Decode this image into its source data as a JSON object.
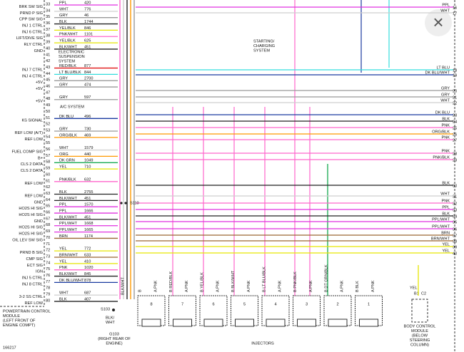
{
  "left_rows": [
    {
      "pin": "33",
      "signal": "BRK SW SIG",
      "wire": "PPL",
      "circuit": "420"
    },
    {
      "pin": "34",
      "signal": "PRND P SIG",
      "wire": "WHT",
      "circuit": "776"
    },
    {
      "pin": "35",
      "signal": "CPP SW SIG",
      "wire": "GRY",
      "circuit": "46"
    },
    {
      "pin": "36",
      "signal": "INJ 1 CTRL",
      "wire": "BLK",
      "circuit": "1744"
    },
    {
      "pin": "37",
      "signal": "INJ 6 CTRL",
      "wire": "YEL/BLK",
      "circuit": "846"
    },
    {
      "pin": "38",
      "signal": "LIFT/DIVE SIG",
      "wire": "PNK/WHT",
      "circuit": "1101"
    },
    {
      "pin": "39",
      "signal": "RLY CTRL",
      "wire": "YEL/BLK",
      "circuit": "625"
    },
    {
      "pin": "40",
      "signal": "GND",
      "wire": "BLK/WHT",
      "circuit": "451"
    },
    {
      "pin": "41"
    },
    {
      "pin": "42"
    },
    {
      "pin": "43",
      "signal": "INJ 7 CTRL",
      "wire": "RED/BLK",
      "circuit": "877"
    },
    {
      "pin": "44",
      "signal": "INJ 4 CTRL",
      "wire": "LT BLU/BLK",
      "circuit": "844"
    },
    {
      "pin": "45",
      "signal": "+5V",
      "wire": "GRY",
      "circuit": "2700"
    },
    {
      "pin": "46",
      "signal": "+5V",
      "wire": "GRY",
      "circuit": "474"
    },
    {
      "pin": "47"
    },
    {
      "pin": "48",
      "signal": "+5V",
      "wire": "GRY",
      "circuit": "597"
    },
    {
      "pin": "49"
    },
    {
      "pin": "50"
    },
    {
      "pin": "51",
      "signal": "KS SIGNAL",
      "wire": "DK BLU",
      "circuit": "496"
    },
    {
      "pin": "52"
    },
    {
      "pin": "53",
      "signal": "REF LOW (A/T)",
      "wire": "GRY",
      "circuit": "730"
    },
    {
      "pin": "54",
      "signal": "REF LOW",
      "wire": "ORG/BLK",
      "circuit": "469"
    },
    {
      "pin": "55"
    },
    {
      "pin": "56",
      "signal": "FUEL COMP SIG",
      "wire": "WHT",
      "circuit": "1579"
    },
    {
      "pin": "57",
      "signal": "B+",
      "wire": "ORG",
      "circuit": "440"
    },
    {
      "pin": "58",
      "signal": "CLS 2 DATA",
      "wire": "DK GRN",
      "circuit": "1049"
    },
    {
      "pin": "59",
      "signal": "CLS 2 DATA",
      "wire": "YEL",
      "circuit": "710"
    },
    {
      "pin": "60"
    },
    {
      "pin": "61",
      "signal": "REF LOW",
      "wire": "PNK/BLK",
      "circuit": "632"
    },
    {
      "pin": "62"
    },
    {
      "pin": "63",
      "signal": "REF LOW",
      "wire": "BLK",
      "circuit": "2755"
    },
    {
      "pin": "64",
      "signal": "GND",
      "wire": "BLK/WHT",
      "circuit": "451"
    },
    {
      "pin": "65",
      "signal": "HO2S HI SIG",
      "wire": "PPL",
      "circuit": "1570"
    },
    {
      "pin": "66",
      "signal": "HO2S HI SIG",
      "wire": "PPL",
      "circuit": "1666"
    },
    {
      "pin": "67",
      "signal": "GND",
      "wire": "BLK/WHT",
      "circuit": "451"
    },
    {
      "pin": "68",
      "signal": "HO2S HI SIG",
      "wire": "PPL/WHT",
      "circuit": "1668"
    },
    {
      "pin": "69",
      "signal": "HO2S HI SIG",
      "wire": "PPL/WHT",
      "circuit": "1665"
    },
    {
      "pin": "70",
      "signal": "OIL LEV SW SIG",
      "wire": "BRN",
      "circuit": "1174"
    },
    {
      "pin": "71"
    },
    {
      "pin": "72",
      "signal": "PRND B SIG",
      "wire": "YEL",
      "circuit": "772"
    },
    {
      "pin": "73",
      "signal": "CMP SIG",
      "wire": "BRN/WHT",
      "circuit": "633"
    },
    {
      "pin": "74",
      "signal": "ECT SIG",
      "wire": "YEL",
      "circuit": "410"
    },
    {
      "pin": "75",
      "signal": "IGN",
      "wire": "PNK",
      "circuit": "1020"
    },
    {
      "pin": "76",
      "signal": "INJ 5 CTRL",
      "wire": "BLK/WHT",
      "circuit": "845"
    },
    {
      "pin": "77",
      "signal": "INJ 8 CTRL",
      "wire": "DK BLU/WHT",
      "circuit": "878"
    },
    {
      "pin": "78"
    },
    {
      "pin": "79",
      "signal": "3-2 SS CTRL",
      "wire": "WHT",
      "circuit": "687"
    },
    {
      "pin": "80",
      "signal": "REF LOW",
      "wire": "BLK",
      "circuit": "407"
    }
  ],
  "right_rows": [
    {
      "wire": "PPL",
      "pin": "16"
    },
    {
      "wire": "WHT",
      "pin": "17"
    },
    {
      "wire": "LT BLU",
      "pin": "18"
    },
    {
      "wire": "DK BLU/WHT",
      "pin": "19"
    },
    {
      "wire": "GRY",
      "pin": "20"
    },
    {
      "wire": "GRY",
      "pin": "21"
    },
    {
      "wire": "WHT",
      "pin": "22"
    },
    {
      "wire": "DK BLU",
      "pin": "23"
    },
    {
      "wire": "BLK",
      "pin": "24"
    },
    {
      "wire": "PNK",
      "pin": "25"
    },
    {
      "wire": "ORG/BLK",
      "pin": "26"
    },
    {
      "wire": "PNK",
      "pin": "27"
    },
    {
      "wire": "PNK",
      "pin": "28"
    },
    {
      "wire": "PNK/BLK",
      "pin": "29"
    },
    {
      "wire": "BLK",
      "pin": "30"
    },
    {
      "wire": "WHT",
      "pin": "31"
    },
    {
      "wire": "PNK",
      "pin": "32"
    },
    {
      "wire": "PPL",
      "pin": "33"
    },
    {
      "wire": "BLK",
      "pin": "34"
    },
    {
      "wire": "PPL/WHT",
      "pin": "35"
    },
    {
      "wire": "PPL/WHT",
      "pin": "36"
    },
    {
      "wire": "BRN",
      "pin": "37"
    },
    {
      "wire": "BRN/WHT",
      "pin": "38"
    },
    {
      "wire": "YEL",
      "pin": "39"
    },
    {
      "wire": "YEL",
      "pin": "40"
    }
  ],
  "injectors": [
    {
      "number": "8",
      "b": "B",
      "a": "A PNK"
    },
    {
      "number": "7",
      "b": "B RED/BLK",
      "a": "A PNK"
    },
    {
      "number": "6",
      "b": "B YEL/BLK",
      "a": "A PNK"
    },
    {
      "number": "5",
      "b": "B BLK/WHT",
      "a": "A PNK"
    },
    {
      "number": "4",
      "b": "B LT BLU/BLK",
      "a": "A PNK"
    },
    {
      "number": "3",
      "b": "B PNK/BLK",
      "a": "A PNK"
    },
    {
      "number": "2",
      "b": "B DT GRN/BLK",
      "a": "A PNK"
    },
    {
      "number": "1",
      "b": "B BLK",
      "a": "A PNK"
    }
  ],
  "labels": {
    "starting": [
      "STARTING/",
      "CHARGING",
      "SYSTEM"
    ],
    "suspension": [
      "ELECTRONIC",
      "SUSPENSION",
      "SYSTEM"
    ],
    "ac": "A/C SYSTEM",
    "s110": "S110",
    "s103": "S103",
    "blkwht": [
      "BLK/",
      "WHT"
    ],
    "blkwht_v": "BLK/WHT",
    "g103": [
      "G103",
      "(RIGHT REAR OF",
      "ENGINE)"
    ],
    "pcm": [
      "POWERTRAIN CONTROL",
      "MODULE",
      "(LEFT FRONT OF",
      "ENGINE COMPT)"
    ],
    "bcm": [
      "BODY CONTROL",
      "MODULE",
      "(BELOW",
      "STEERING",
      "COLUMN)"
    ],
    "bcm_wire": "YEL",
    "bcm_pin": "B1",
    "bcm_conn": "C2",
    "injectors": "INJECTORS",
    "figure": "166217",
    "close": "×"
  }
}
